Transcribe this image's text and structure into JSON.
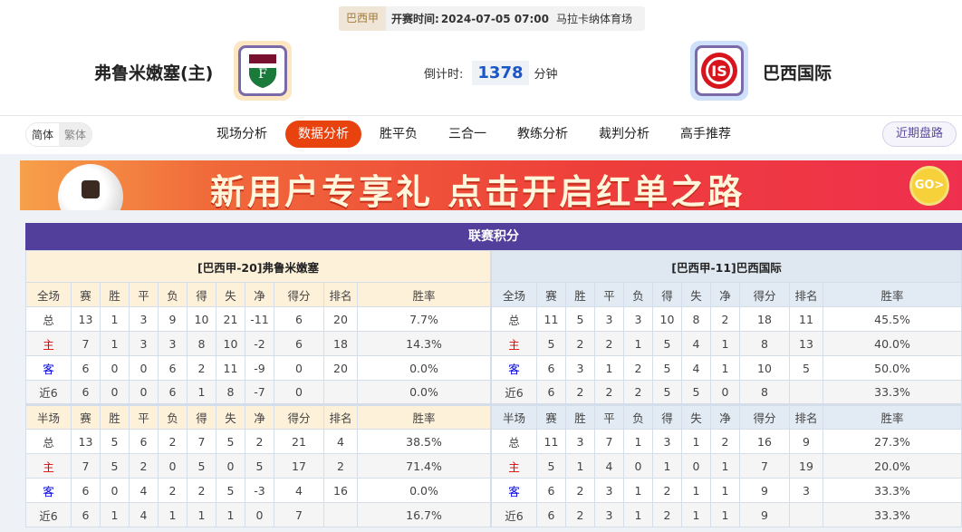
{
  "match": {
    "league": "巴西甲",
    "kickoff_label": "开赛时间:",
    "kickoff_time": "2024-07-05 07:00",
    "venue": "马拉卡纳体育场",
    "home_team": "弗鲁米嫩塞(主)",
    "away_team": "巴西国际",
    "countdown_label": "倒计时:",
    "countdown_value": "1378",
    "countdown_unit": "分钟"
  },
  "nav": {
    "lang_simplified": "简体",
    "lang_traditional": "繁体",
    "tabs": [
      "现场分析",
      "数据分析",
      "胜平负",
      "三合一",
      "教练分析",
      "裁判分析",
      "高手推荐"
    ],
    "active_tab": "数据分析",
    "recent_button": "近期盘路"
  },
  "banner": {
    "text": "新用户专享礼 点击开启红单之路",
    "go": "GO>"
  },
  "standings": {
    "title": "联赛积分",
    "columns_full": [
      "全场",
      "赛",
      "胜",
      "平",
      "负",
      "得",
      "失",
      "净",
      "得分",
      "排名",
      "胜率"
    ],
    "columns_half": [
      "半场",
      "赛",
      "胜",
      "平",
      "负",
      "得",
      "失",
      "净",
      "得分",
      "排名",
      "胜率"
    ],
    "home": {
      "header": "[巴西甲-20]弗鲁米嫩塞",
      "full": [
        [
          "总",
          "13",
          "1",
          "3",
          "9",
          "10",
          "21",
          "-11",
          "6",
          "20",
          "7.7%"
        ],
        [
          "主",
          "7",
          "1",
          "3",
          "3",
          "8",
          "10",
          "-2",
          "6",
          "18",
          "14.3%"
        ],
        [
          "客",
          "6",
          "0",
          "0",
          "6",
          "2",
          "11",
          "-9",
          "0",
          "20",
          "0.0%"
        ],
        [
          "近6",
          "6",
          "0",
          "0",
          "6",
          "1",
          "8",
          "-7",
          "0",
          "",
          "0.0%"
        ]
      ],
      "half": [
        [
          "总",
          "13",
          "5",
          "6",
          "2",
          "7",
          "5",
          "2",
          "21",
          "4",
          "38.5%"
        ],
        [
          "主",
          "7",
          "5",
          "2",
          "0",
          "5",
          "0",
          "5",
          "17",
          "2",
          "71.4%"
        ],
        [
          "客",
          "6",
          "0",
          "4",
          "2",
          "2",
          "5",
          "-3",
          "4",
          "16",
          "0.0%"
        ],
        [
          "近6",
          "6",
          "1",
          "4",
          "1",
          "1",
          "1",
          "0",
          "7",
          "",
          "16.7%"
        ]
      ]
    },
    "away": {
      "header": "[巴西甲-11]巴西国际",
      "full": [
        [
          "总",
          "11",
          "5",
          "3",
          "3",
          "10",
          "8",
          "2",
          "18",
          "11",
          "45.5%"
        ],
        [
          "主",
          "5",
          "2",
          "2",
          "1",
          "5",
          "4",
          "1",
          "8",
          "13",
          "40.0%"
        ],
        [
          "客",
          "6",
          "3",
          "1",
          "2",
          "5",
          "4",
          "1",
          "10",
          "5",
          "50.0%"
        ],
        [
          "近6",
          "6",
          "2",
          "2",
          "2",
          "5",
          "5",
          "0",
          "8",
          "",
          "33.3%"
        ]
      ],
      "half": [
        [
          "总",
          "11",
          "3",
          "7",
          "1",
          "3",
          "1",
          "2",
          "16",
          "9",
          "27.3%"
        ],
        [
          "主",
          "5",
          "1",
          "4",
          "0",
          "1",
          "0",
          "1",
          "7",
          "19",
          "20.0%"
        ],
        [
          "客",
          "6",
          "2",
          "3",
          "1",
          "2",
          "1",
          "1",
          "9",
          "3",
          "33.3%"
        ],
        [
          "近6",
          "6",
          "2",
          "3",
          "1",
          "2",
          "1",
          "1",
          "9",
          "",
          "33.3%"
        ]
      ]
    }
  },
  "colors": {
    "accent": "#e8420f",
    "section_header": "#523f9b",
    "countdown": "#1a56c8",
    "home_label": "#e00000",
    "away_label": "#0000dd"
  }
}
